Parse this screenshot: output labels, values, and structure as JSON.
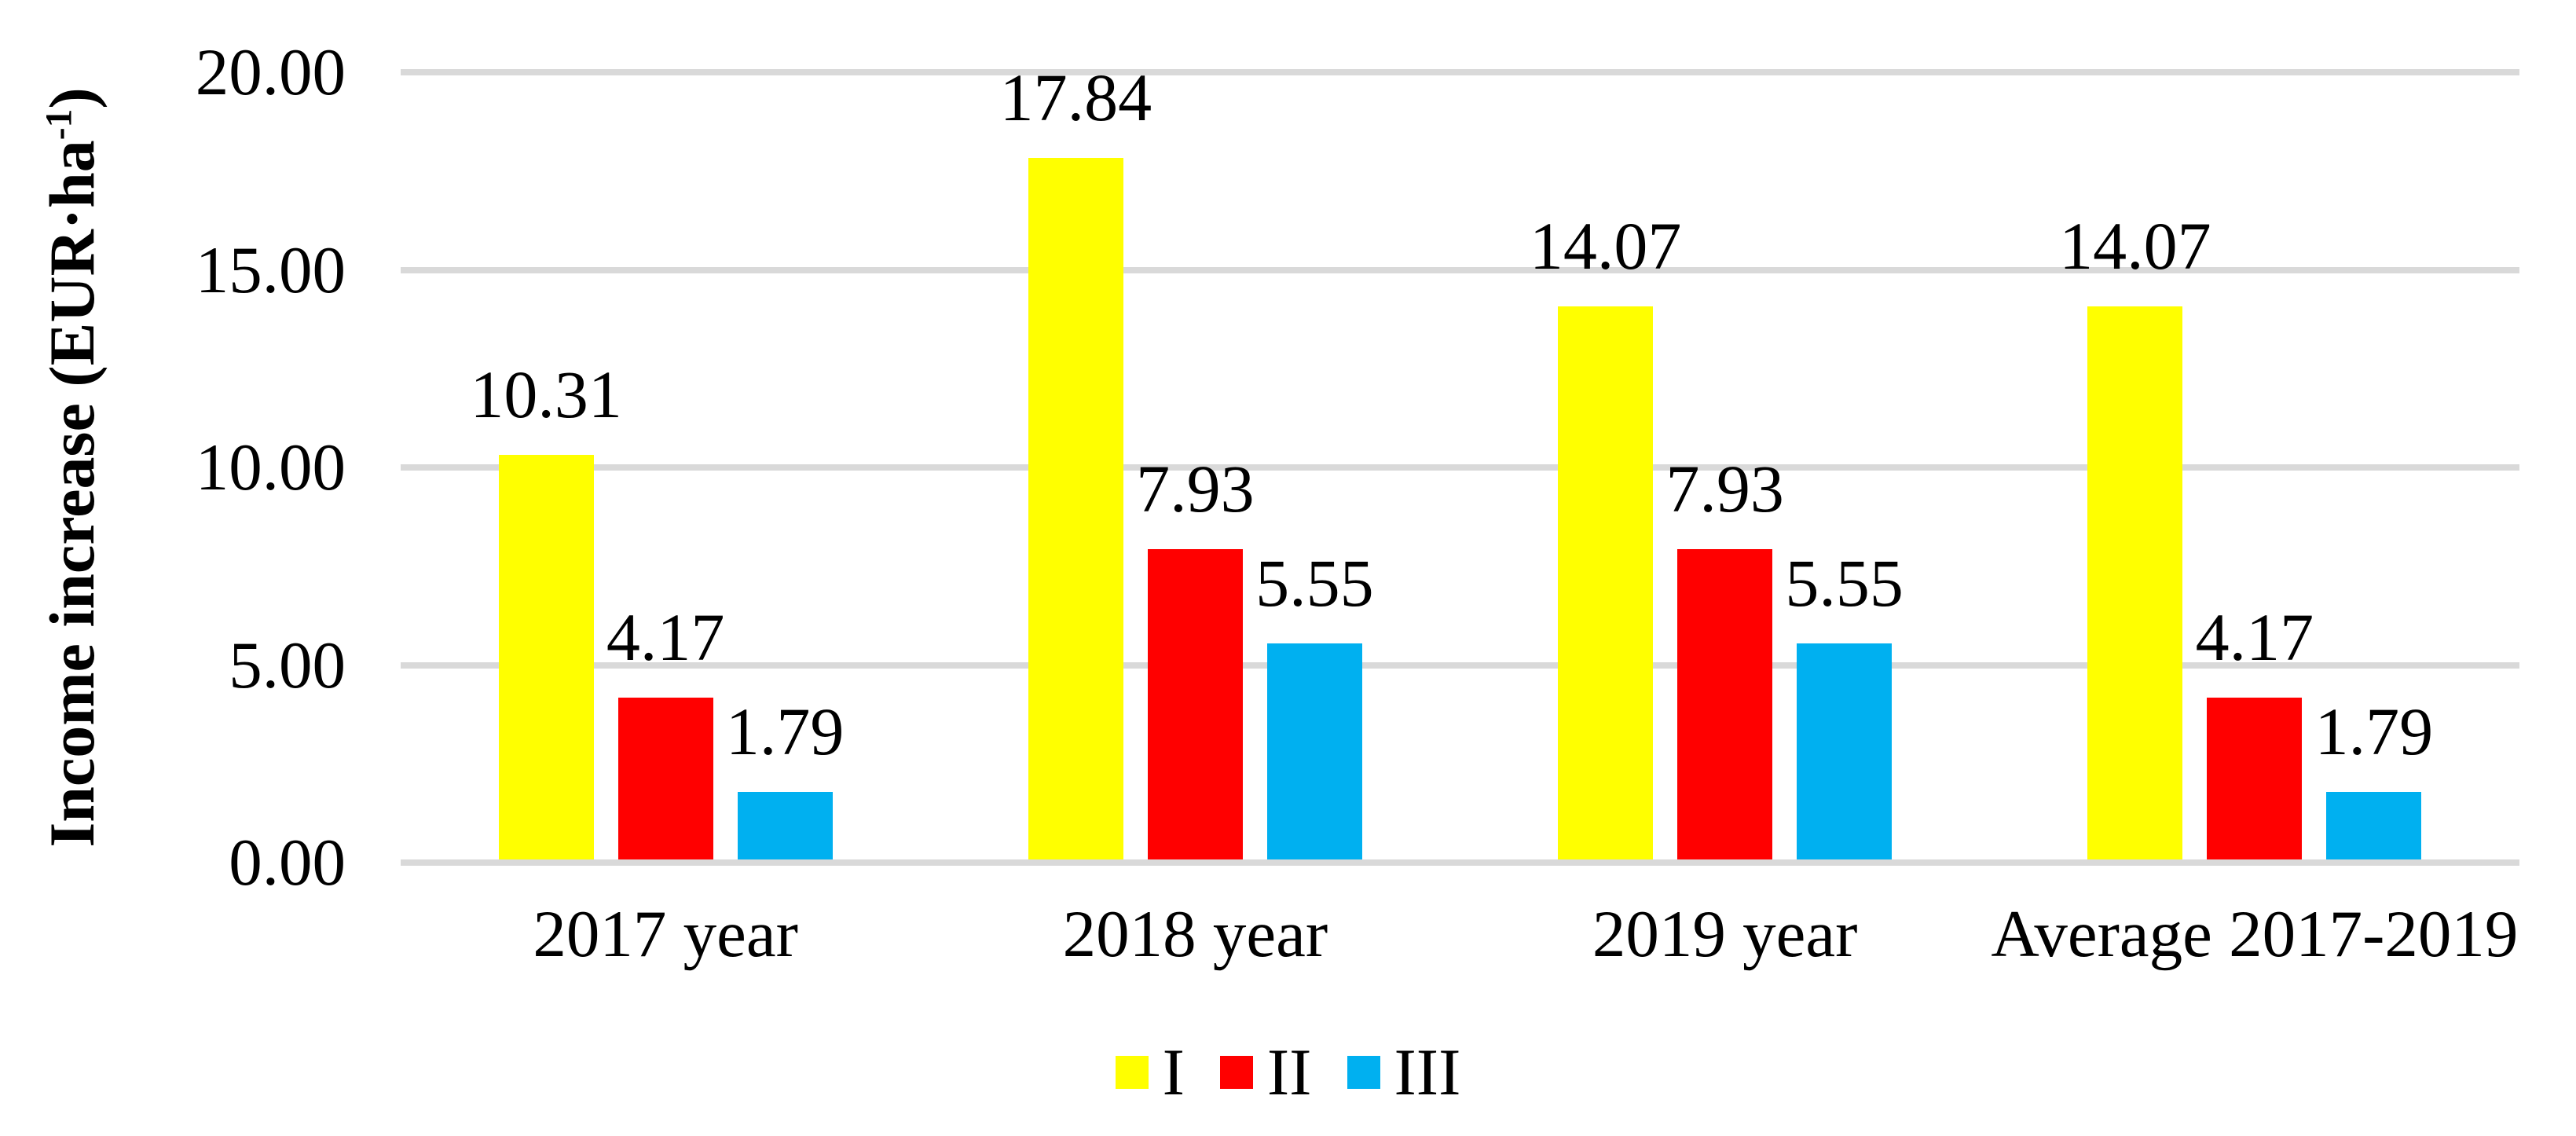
{
  "chart_data": {
    "type": "bar",
    "title": "",
    "ylabel": {
      "prefix": "Income increase (EUR·ha",
      "superscript": "-1",
      "suffix": ")"
    },
    "ylim": [
      0,
      20
    ],
    "yticks": [
      {
        "label": "20.00",
        "value": 20
      },
      {
        "label": "15.00",
        "value": 15
      },
      {
        "label": "10.00",
        "value": 10
      },
      {
        "label": "5.00",
        "value": 5
      },
      {
        "label": "0.00",
        "value": 0
      }
    ],
    "grid": "horizontal-only",
    "legend_position": "bottom-center",
    "data_label_decimals": 2,
    "categories": [
      "2017 year",
      "2018 year",
      "2019 year",
      "Average 2017-2019"
    ],
    "series": [
      {
        "name": "I",
        "color": "#FFFF00",
        "values": [
          10.31,
          17.84,
          14.07,
          14.07
        ]
      },
      {
        "name": "II",
        "color": "#FF0000",
        "values": [
          4.17,
          7.93,
          7.93,
          4.17
        ]
      },
      {
        "name": "III",
        "color": "#00B0F0",
        "values": [
          1.79,
          5.55,
          5.55,
          1.79
        ]
      }
    ],
    "colors": {
      "gridline": "#D9D9D9",
      "axis_line": "#D9D9D9",
      "text": "#000000",
      "background": "#FFFFFF"
    }
  }
}
